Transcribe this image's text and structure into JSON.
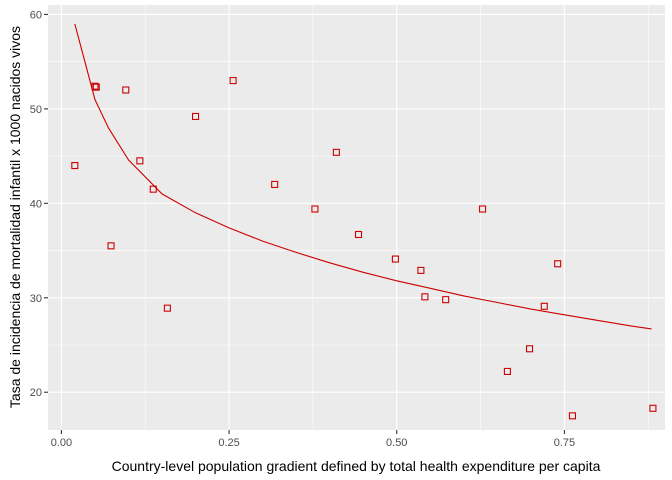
{
  "chart_data": {
    "type": "scatter",
    "title": "",
    "xlabel": "Country-level population gradient defined by total health expenditure per capita",
    "ylabel": "Tasa de incidencia de mortalidad infantil x 1000 nacidos vivos",
    "xlim": [
      -0.02,
      0.9
    ],
    "ylim": [
      16,
      61
    ],
    "x_ticks": [
      0.0,
      0.25,
      0.5,
      0.75
    ],
    "x_tick_labels": [
      "0.00",
      "0.25",
      "0.50",
      "0.75"
    ],
    "y_ticks": [
      20,
      30,
      40,
      50,
      60
    ],
    "y_tick_labels": [
      "20",
      "30",
      "40",
      "50",
      "60"
    ],
    "grid": true,
    "background": "#ebebeb",
    "grid_color": "#ffffff",
    "series": [
      {
        "kind": "points",
        "marker": "open-square",
        "color": "#cc0000",
        "points": [
          {
            "x": 0.02,
            "y": 44.0
          },
          {
            "x": 0.05,
            "y": 52.4
          },
          {
            "x": 0.052,
            "y": 52.3
          },
          {
            "x": 0.074,
            "y": 35.5
          },
          {
            "x": 0.096,
            "y": 52.0
          },
          {
            "x": 0.117,
            "y": 44.5
          },
          {
            "x": 0.137,
            "y": 41.5
          },
          {
            "x": 0.158,
            "y": 28.9
          },
          {
            "x": 0.2,
            "y": 49.2
          },
          {
            "x": 0.256,
            "y": 53.0
          },
          {
            "x": 0.318,
            "y": 42.0
          },
          {
            "x": 0.378,
            "y": 39.4
          },
          {
            "x": 0.41,
            "y": 45.4
          },
          {
            "x": 0.443,
            "y": 36.7
          },
          {
            "x": 0.498,
            "y": 34.1
          },
          {
            "x": 0.536,
            "y": 32.9
          },
          {
            "x": 0.542,
            "y": 30.1
          },
          {
            "x": 0.573,
            "y": 29.8
          },
          {
            "x": 0.628,
            "y": 39.4
          },
          {
            "x": 0.665,
            "y": 22.2
          },
          {
            "x": 0.698,
            "y": 24.6
          },
          {
            "x": 0.72,
            "y": 29.1
          },
          {
            "x": 0.74,
            "y": 33.6
          },
          {
            "x": 0.762,
            "y": 17.5
          },
          {
            "x": 0.882,
            "y": 18.3
          }
        ]
      },
      {
        "kind": "line",
        "color": "#cc0000",
        "points": [
          {
            "x": 0.02,
            "y": 59.0
          },
          {
            "x": 0.035,
            "y": 55.0
          },
          {
            "x": 0.05,
            "y": 51.0
          },
          {
            "x": 0.07,
            "y": 48.0
          },
          {
            "x": 0.1,
            "y": 44.6
          },
          {
            "x": 0.15,
            "y": 41.0
          },
          {
            "x": 0.2,
            "y": 39.0
          },
          {
            "x": 0.25,
            "y": 37.4
          },
          {
            "x": 0.3,
            "y": 36.0
          },
          {
            "x": 0.35,
            "y": 34.8
          },
          {
            "x": 0.4,
            "y": 33.7
          },
          {
            "x": 0.45,
            "y": 32.7
          },
          {
            "x": 0.5,
            "y": 31.8
          },
          {
            "x": 0.55,
            "y": 31.0
          },
          {
            "x": 0.6,
            "y": 30.2
          },
          {
            "x": 0.65,
            "y": 29.5
          },
          {
            "x": 0.7,
            "y": 28.8
          },
          {
            "x": 0.75,
            "y": 28.2
          },
          {
            "x": 0.8,
            "y": 27.6
          },
          {
            "x": 0.85,
            "y": 27.0
          },
          {
            "x": 0.88,
            "y": 26.7
          }
        ]
      }
    ]
  }
}
